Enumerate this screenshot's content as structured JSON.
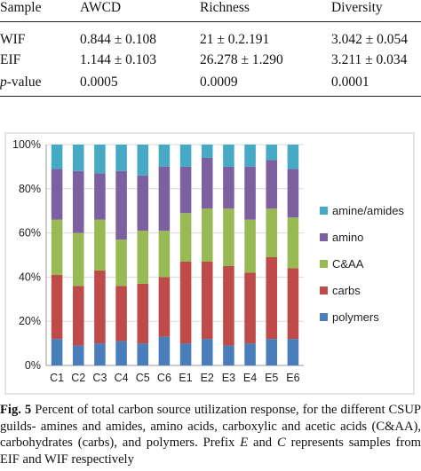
{
  "table": {
    "headers": [
      "Sample",
      "AWCD",
      "Richness",
      "Diversity"
    ],
    "rows": [
      [
        "WIF",
        "0.844 ± 0.108",
        "21 ± 0.2.191",
        "3.042 ± 0.054"
      ],
      [
        "EIF",
        "1.144 ± 0.103",
        "26.278 ± 1.290",
        "3.211 ± 0.034"
      ]
    ],
    "pvalue_label_italic": "p",
    "pvalue_label_rest": "-value",
    "pvalue_values": [
      "0.0005",
      "0.0009",
      "0.0001"
    ]
  },
  "chart_data": {
    "type": "bar",
    "stacked": true,
    "categories": [
      "C1",
      "C2",
      "C3",
      "C4",
      "C5",
      "C6",
      "E1",
      "E2",
      "E3",
      "E4",
      "E5",
      "E6"
    ],
    "ylim": [
      0,
      100
    ],
    "yticks": [
      "0%",
      "20%",
      "40%",
      "60%",
      "80%",
      "100%"
    ],
    "series": [
      {
        "name": "polymers",
        "color": "#4a7ebb",
        "values": [
          12,
          9,
          10,
          11,
          10,
          13,
          10,
          12,
          9,
          10,
          12,
          12
        ]
      },
      {
        "name": "carbs",
        "color": "#be4b48",
        "values": [
          29,
          27,
          33,
          25,
          27,
          27,
          37,
          35,
          36,
          32,
          37,
          32
        ]
      },
      {
        "name": "C&AA",
        "color": "#98b954",
        "values": [
          25,
          24,
          23,
          21,
          24,
          21,
          22,
          24,
          26,
          24,
          22,
          23
        ]
      },
      {
        "name": "amino",
        "color": "#7d60a0",
        "values": [
          23,
          28,
          21,
          31,
          25,
          29,
          21,
          23,
          19,
          24,
          22,
          22
        ]
      },
      {
        "name": "amine/amides",
        "color": "#46aac5",
        "values": [
          11,
          12,
          13,
          12,
          14,
          10,
          10,
          6,
          10,
          10,
          7,
          11
        ]
      }
    ],
    "legend_order": [
      "amine/amides",
      "amino",
      "C&AA",
      "carbs",
      "polymers"
    ],
    "legend_position": "right",
    "grid": true
  },
  "caption": {
    "label": "Fig. 5",
    "text": "Percent of total carbon source utilization response, for the different CSUP guilds- amines and amides, amino acids, carboxylic and acetic acids (C&AA), carbohydrates (carbs), and polymers. Prefix",
    "prefix_e": "E",
    "text_and": "and",
    "prefix_c": "C",
    "text_end": "represents samples from EIF and WIF respectively"
  }
}
